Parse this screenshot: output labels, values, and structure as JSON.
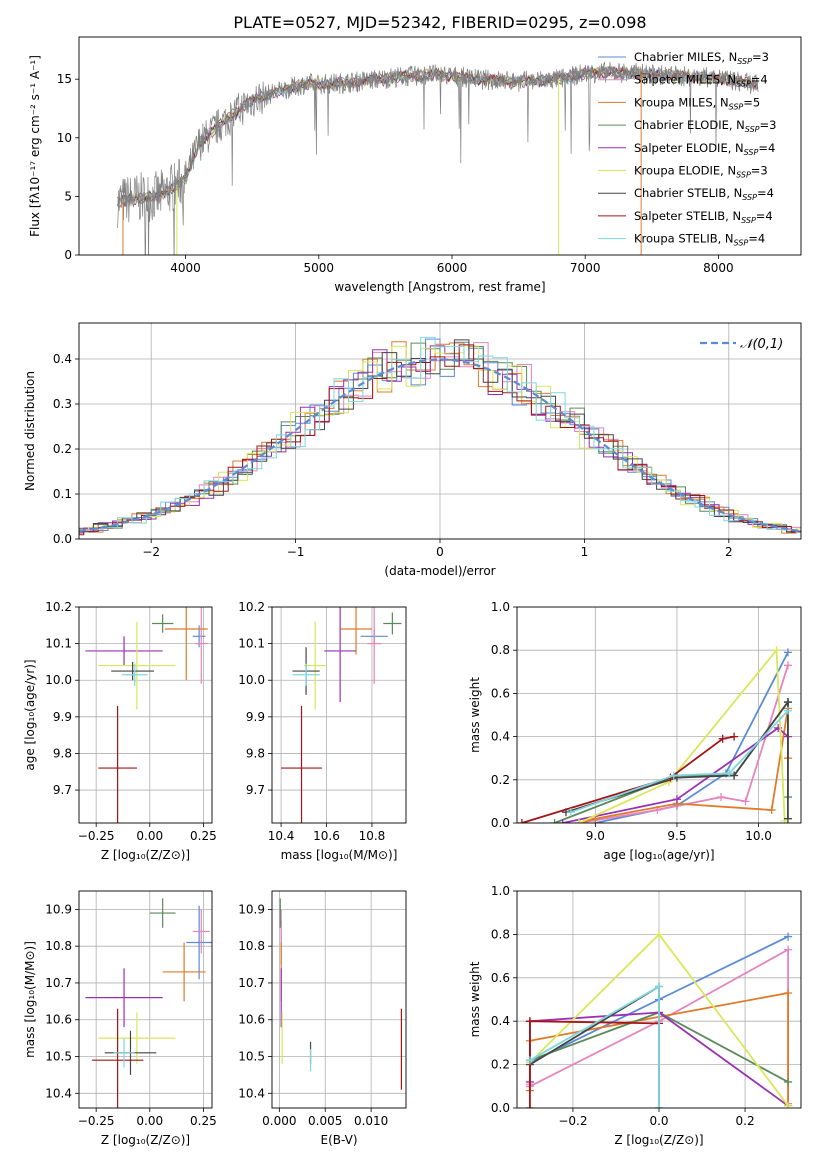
{
  "figure_title": "PLATE=0527, MJD=52342, FIBERID=0295, z=0.098",
  "models": [
    {
      "name": "Chabrier MILES",
      "nssp": "3",
      "color": "#5b8bd6"
    },
    {
      "name": "Salpeter MILES",
      "nssp": "4",
      "color": "#e584be"
    },
    {
      "name": "Kroupa MILES",
      "nssp": "5",
      "color": "#e07b2a"
    },
    {
      "name": "Chabrier ELODIE",
      "nssp": "3",
      "color": "#5a8a5a"
    },
    {
      "name": "Salpeter ELODIE",
      "nssp": "4",
      "color": "#9b30b5"
    },
    {
      "name": "Kroupa ELODIE",
      "nssp": "3",
      "color": "#d8e85a"
    },
    {
      "name": "Chabrier STELIB",
      "nssp": "4",
      "color": "#454545"
    },
    {
      "name": "Salpeter STELIB",
      "nssp": "4",
      "color": "#a31515"
    },
    {
      "name": "Kroupa STELIB",
      "nssp": "4",
      "color": "#7fd6e0"
    }
  ],
  "chart_data": [
    {
      "id": "spectrum",
      "type": "line",
      "xlabel": "wavelength [Angstrom, rest frame]",
      "ylabel": "Flux [fλ10⁻¹⁷ erg cm⁻² s⁻¹ A⁻¹]",
      "xlim": [
        3200,
        8620
      ],
      "ylim": [
        0,
        18.6
      ],
      "xticks": [
        4000,
        5000,
        6000,
        7000,
        8000
      ],
      "yticks": [
        0,
        5,
        10,
        15
      ],
      "grid": false,
      "legend": "top-right",
      "continuum": {
        "x": [
          3490,
          3600,
          3800,
          4000,
          4100,
          4300,
          4500,
          4700,
          4900,
          5100,
          5300,
          5600,
          5900,
          6200,
          6500,
          6800,
          7000,
          7200,
          7500,
          7800,
          8000,
          8200,
          8300
        ],
        "y": [
          4.5,
          4.8,
          5.0,
          6.5,
          9.5,
          11.5,
          13.2,
          14.0,
          14.6,
          14.6,
          14.8,
          15.2,
          15.4,
          15.0,
          14.8,
          15.0,
          15.5,
          15.6,
          15.4,
          15.2,
          15.1,
          14.7,
          14.5
        ]
      }
    },
    {
      "id": "residuals",
      "type": "histogram",
      "xlabel": "(data-model)/error",
      "ylabel": "Normed distribution",
      "xlim": [
        -2.5,
        2.5
      ],
      "ylim": [
        0,
        0.48
      ],
      "xticks": [
        -2,
        -1,
        0,
        1,
        2
      ],
      "yticks": [
        0.0,
        0.1,
        0.2,
        0.3,
        0.4
      ],
      "grid": true,
      "legend": "top-right",
      "gaussian_label": "𝒩(0,1)",
      "gaussian_color": "#5b8bd6"
    },
    {
      "id": "age_vs_Z",
      "type": "scatter",
      "xlabel": "Z [log₁₀(Z/Z⊙)]",
      "ylabel": "age  [log₁₀(age/yr)]",
      "xlim": [
        -0.33,
        0.29
      ],
      "ylim": [
        9.61,
        10.2
      ],
      "xticks": [
        -0.25,
        0.0,
        0.25
      ],
      "yticks": [
        9.7,
        9.8,
        9.9,
        10.0,
        10.1,
        10.2
      ],
      "grid": true,
      "points": [
        {
          "x": 0.23,
          "y": 10.12,
          "xe": 0.03,
          "ye": 0.03
        },
        {
          "x": 0.24,
          "y": 10.1,
          "xe": 0.03,
          "ye": 0.11
        },
        {
          "x": 0.17,
          "y": 10.14,
          "xe": 0.1,
          "ye": 0.14
        },
        {
          "x": 0.06,
          "y": 10.155,
          "xe": 0.05,
          "ye": 0.025
        },
        {
          "x": -0.12,
          "y": 10.08,
          "xe": 0.18,
          "ye": 0.04
        },
        {
          "x": -0.06,
          "y": 10.04,
          "xe": 0.18,
          "ye": 0.12
        },
        {
          "x": -0.08,
          "y": 10.025,
          "xe": 0.1,
          "ye": 0.025
        },
        {
          "x": -0.15,
          "y": 9.76,
          "xe": 0.09,
          "ye": 0.17
        },
        {
          "x": -0.07,
          "y": 10.015,
          "xe": 0.06,
          "ye": 0.03
        }
      ]
    },
    {
      "id": "age_vs_mass",
      "type": "scatter",
      "xlabel": "mass [log₁₀(M/M⊙)]",
      "ylabel": "",
      "xlim": [
        10.36,
        10.95
      ],
      "ylim": [
        9.61,
        10.2
      ],
      "xticks": [
        10.4,
        10.6,
        10.8
      ],
      "yticks": [
        9.7,
        9.8,
        9.9,
        10.0,
        10.1,
        10.2
      ],
      "grid": true,
      "points": [
        {
          "x": 10.81,
          "y": 10.12,
          "xe": 0.06,
          "ye": 0.02
        },
        {
          "x": 10.81,
          "y": 10.1,
          "xe": 0.03,
          "ye": 0.11
        },
        {
          "x": 10.73,
          "y": 10.14,
          "xe": 0.07,
          "ye": 0.07
        },
        {
          "x": 10.89,
          "y": 10.155,
          "xe": 0.04,
          "ye": 0.03
        },
        {
          "x": 10.66,
          "y": 10.08,
          "xe": 0.07,
          "ye": 0.14
        },
        {
          "x": 10.55,
          "y": 10.04,
          "xe": 0.05,
          "ye": 0.12
        },
        {
          "x": 10.51,
          "y": 10.025,
          "xe": 0.06,
          "ye": 0.065
        },
        {
          "x": 10.49,
          "y": 9.76,
          "xe": 0.09,
          "ye": 0.17
        },
        {
          "x": 10.51,
          "y": 10.015,
          "xe": 0.06,
          "ye": 0.03
        }
      ]
    },
    {
      "id": "mass_weight_vs_age",
      "type": "line",
      "xlabel": "age  [log₁₀(age/yr)]",
      "ylabel": "mass weight",
      "xlim": [
        8.52,
        10.26
      ],
      "ylim": [
        0,
        1.0
      ],
      "xticks": [
        9.0,
        9.5,
        10.0
      ],
      "yticks": [
        0.0,
        0.2,
        0.4,
        0.6,
        0.8,
        1.0
      ],
      "grid": true,
      "series": [
        {
          "x": [
            9.0,
            9.5,
            9.8,
            10.18
          ],
          "y": [
            0.0,
            0.08,
            0.23,
            0.79
          ]
        },
        {
          "x": [
            8.9,
            9.38,
            9.77,
            9.92,
            10.18
          ],
          "y": [
            0.0,
            0.06,
            0.12,
            0.1,
            0.73
          ]
        },
        {
          "x": [
            8.9,
            9.0,
            9.5,
            10.08,
            10.18,
            10.18
          ],
          "y": [
            0.0,
            0.02,
            0.09,
            0.06,
            0.53,
            0.3
          ]
        },
        {
          "x": [
            8.75,
            9.5,
            9.85,
            10.18,
            10.18
          ],
          "y": [
            0.0,
            0.22,
            0.22,
            0.56,
            0.12
          ]
        },
        {
          "x": [
            8.8,
            9.5,
            10.12,
            10.18
          ],
          "y": [
            0.0,
            0.11,
            0.44,
            0.4
          ]
        },
        {
          "x": [
            8.9,
            9.45,
            10.11,
            10.16
          ],
          "y": [
            0.0,
            0.19,
            0.8,
            0.01
          ]
        },
        {
          "x": [
            8.82,
            9.5,
            9.85,
            10.18,
            10.18
          ],
          "y": [
            0.05,
            0.21,
            0.22,
            0.56,
            0.02
          ]
        },
        {
          "x": [
            8.55,
            9.46,
            9.78,
            9.85
          ],
          "y": [
            0.0,
            0.21,
            0.39,
            0.4
          ]
        },
        {
          "x": [
            8.85,
            9.48,
            9.82,
            10.18
          ],
          "y": [
            0.05,
            0.22,
            0.23,
            0.52
          ]
        }
      ]
    },
    {
      "id": "mass_vs_Z",
      "type": "scatter",
      "xlabel": "Z [log₁₀(Z/Z⊙)]",
      "ylabel": "mass [log₁₀(M/M⊙)]",
      "xlim": [
        -0.33,
        0.29
      ],
      "ylim": [
        10.36,
        10.95
      ],
      "xticks": [
        -0.25,
        0.0,
        0.25
      ],
      "yticks": [
        10.4,
        10.5,
        10.6,
        10.7,
        10.8,
        10.9
      ],
      "grid": true,
      "points": [
        {
          "x": 0.23,
          "y": 10.81,
          "xe": 0.06,
          "ye": 0.1
        },
        {
          "x": 0.24,
          "y": 10.84,
          "xe": 0.04,
          "ye": 0.06
        },
        {
          "x": 0.16,
          "y": 10.73,
          "xe": 0.1,
          "ye": 0.08
        },
        {
          "x": 0.06,
          "y": 10.89,
          "xe": 0.06,
          "ye": 0.04
        },
        {
          "x": -0.12,
          "y": 10.66,
          "xe": 0.18,
          "ye": 0.08
        },
        {
          "x": -0.06,
          "y": 10.55,
          "xe": 0.18,
          "ye": 0.07
        },
        {
          "x": -0.09,
          "y": 10.51,
          "xe": 0.12,
          "ye": 0.06
        },
        {
          "x": -0.15,
          "y": 10.49,
          "xe": 0.12,
          "ye": 0.14
        },
        {
          "x": -0.12,
          "y": 10.51,
          "xe": 0.05,
          "ye": 0.04
        }
      ]
    },
    {
      "id": "mass_vs_EBV",
      "type": "scatter",
      "xlabel": "E(B-V)",
      "ylabel": "",
      "xlim": [
        -0.0008,
        0.0138
      ],
      "ylim": [
        10.36,
        10.95
      ],
      "xticks": [
        0.0,
        0.005,
        0.01
      ],
      "yticks": [
        10.4,
        10.5,
        10.6,
        10.7,
        10.8,
        10.9
      ],
      "grid": true,
      "points": [
        {
          "x": 0.0002,
          "y": 10.81,
          "xe": 0,
          "ye": 0.06
        },
        {
          "x": 0.0002,
          "y": 10.84,
          "xe": 0,
          "ye": 0.06
        },
        {
          "x": 0.0002,
          "y": 10.73,
          "xe": 0,
          "ye": 0.08
        },
        {
          "x": 0.0001,
          "y": 10.89,
          "xe": 0,
          "ye": 0.04
        },
        {
          "x": 0.0002,
          "y": 10.66,
          "xe": 0,
          "ye": 0.08
        },
        {
          "x": 0.0003,
          "y": 10.55,
          "xe": 0,
          "ye": 0.07
        },
        {
          "x": 0.0034,
          "y": 10.51,
          "xe": 0,
          "ye": 0.03
        },
        {
          "x": 0.0133,
          "y": 10.52,
          "xe": 0,
          "ye": 0.11
        },
        {
          "x": 0.0034,
          "y": 10.49,
          "xe": 0,
          "ye": 0.03
        }
      ]
    },
    {
      "id": "mass_weight_vs_Z",
      "type": "line",
      "xlabel": "Z [log₁₀(Z/Z⊙)]",
      "ylabel": "mass weight",
      "xlim": [
        -0.33,
        0.33
      ],
      "ylim": [
        0,
        1.0
      ],
      "xticks": [
        -0.2,
        0.0,
        0.2
      ],
      "yticks": [
        0.0,
        0.2,
        0.4,
        0.6,
        0.8,
        1.0
      ],
      "grid": true,
      "series": [
        {
          "x": [
            -0.3,
            0.0,
            0.3
          ],
          "y": [
            0.21,
            0.5,
            0.79
          ]
        },
        {
          "x": [
            -0.3,
            -0.3,
            0.0,
            0.3,
            0.3
          ],
          "y": [
            0.11,
            0.1,
            0.4,
            0.73,
            0.02
          ]
        },
        {
          "x": [
            -0.3,
            -0.3,
            0.3,
            0.3
          ],
          "y": [
            0.08,
            0.31,
            0.53,
            0.01
          ]
        },
        {
          "x": [
            -0.3,
            0.0,
            0.3
          ],
          "y": [
            0.22,
            0.44,
            0.12
          ]
        },
        {
          "x": [
            -0.3,
            -0.3,
            0.0,
            0.3
          ],
          "y": [
            0.12,
            0.4,
            0.44,
            0.01
          ]
        },
        {
          "x": [
            -0.3,
            0.0,
            0.3
          ],
          "y": [
            0.21,
            0.8,
            0.01
          ]
        },
        {
          "x": [
            -0.3,
            0.0,
            0.0
          ],
          "y": [
            0.2,
            0.56,
            0.0
          ]
        },
        {
          "x": [
            -0.3,
            -0.3,
            0.0
          ],
          "y": [
            0.0,
            0.4,
            0.39
          ]
        },
        {
          "x": [
            -0.3,
            0.0,
            0.0
          ],
          "y": [
            0.22,
            0.56,
            0.0
          ]
        }
      ]
    }
  ]
}
